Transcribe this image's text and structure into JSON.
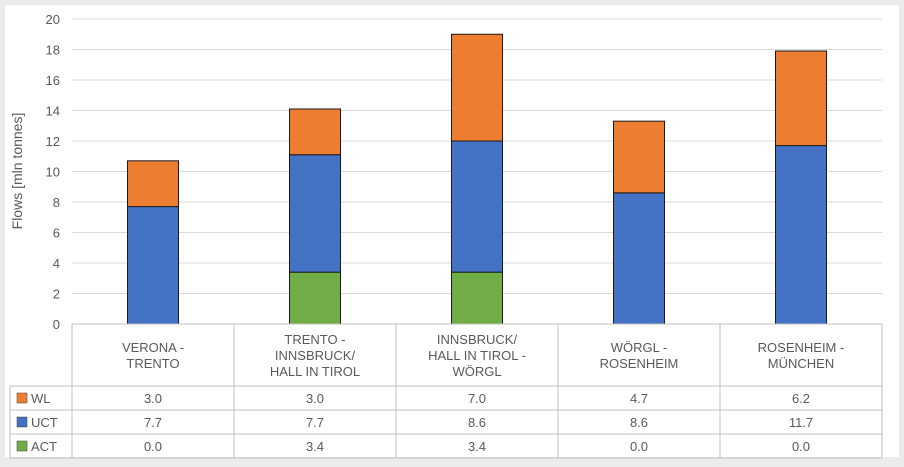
{
  "chart_data": {
    "type": "bar",
    "stacked": true,
    "ylabel": "Flows [mln tonnes]",
    "ylim": [
      0,
      20
    ],
    "yticks": [
      0,
      2,
      4,
      6,
      8,
      10,
      12,
      14,
      16,
      18,
      20
    ],
    "grid": true,
    "categories": [
      [
        "VERONA -",
        "TRENTO"
      ],
      [
        "TRENTO -",
        "INNSBRUCK/",
        "HALL IN TIROL"
      ],
      [
        "INNSBRUCK/",
        "HALL IN TIROL -",
        "WÖRGL"
      ],
      [
        "WÖRGL  -",
        "ROSENHEIM"
      ],
      [
        "ROSENHEIM -",
        "MÜNCHEN"
      ]
    ],
    "series": [
      {
        "name": "ACT",
        "color": "#70ad47",
        "values": [
          0.0,
          3.4,
          3.4,
          0.0,
          0.0
        ],
        "labels": [
          "0.0",
          "3.4",
          "3.4",
          "0.0",
          "0.0"
        ]
      },
      {
        "name": "UCT",
        "color": "#4472c4",
        "values": [
          7.7,
          7.7,
          8.6,
          8.6,
          11.7
        ],
        "labels": [
          "7.7",
          "7.7",
          "8.6",
          "8.6",
          "11.7"
        ]
      },
      {
        "name": "WL",
        "color": "#ed7d31",
        "values": [
          3.0,
          3.0,
          7.0,
          4.7,
          6.2
        ],
        "labels": [
          "3.0",
          "3.0",
          "7.0",
          "4.7",
          "6.2"
        ]
      }
    ],
    "table_row_order": [
      "WL",
      "UCT",
      "ACT"
    ]
  }
}
